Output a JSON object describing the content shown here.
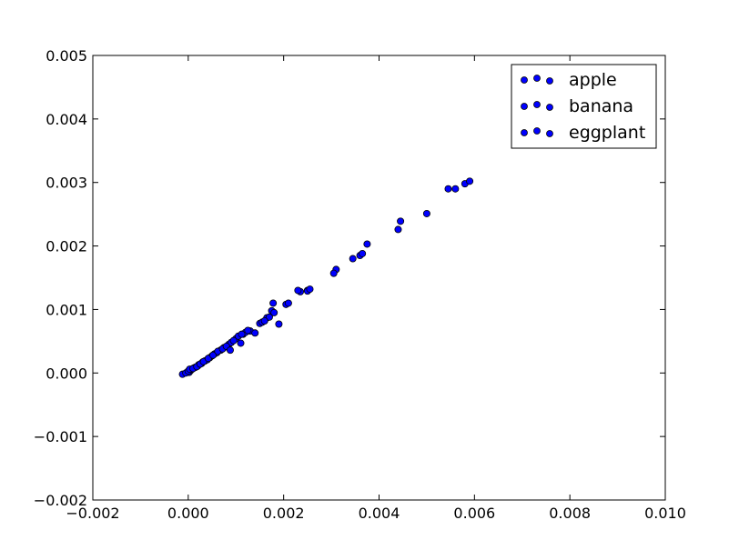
{
  "chart_data": {
    "type": "scatter",
    "title": "",
    "xlabel": "",
    "ylabel": "",
    "xlim": [
      -0.002,
      0.01
    ],
    "ylim": [
      -0.002,
      0.005
    ],
    "xticks": [
      "−0.002",
      "0.000",
      "0.002",
      "0.004",
      "0.006",
      "0.008",
      "0.010"
    ],
    "yticks": [
      "−0.002",
      "−0.001",
      "0.000",
      "0.001",
      "0.002",
      "0.003",
      "0.004",
      "0.005"
    ],
    "xtick_values": [
      -0.002,
      0.0,
      0.002,
      0.004,
      0.006,
      0.008,
      0.01
    ],
    "ytick_values": [
      -0.002,
      -0.001,
      0.0,
      0.001,
      0.002,
      0.003,
      0.004,
      0.005
    ],
    "grid": false,
    "legend_position": "top-right",
    "marker_color": "#0000ff",
    "series": [
      {
        "name": "apple",
        "color": "#0000ff",
        "points": [
          [
            -0.00012,
            -2e-05
          ],
          [
            2e-05,
            1e-05
          ],
          [
            5e-05,
            4e-05
          ],
          [
            0.00012,
            8e-05
          ],
          [
            0.0002,
            0.00011
          ],
          [
            0.00028,
            0.00015
          ],
          [
            0.00035,
            0.00019
          ],
          [
            0.00045,
            0.00024
          ],
          [
            0.00055,
            0.0003
          ],
          [
            0.00068,
            0.00036
          ],
          [
            0.00085,
            0.00045
          ],
          [
            0.001,
            0.00054
          ],
          [
            0.00115,
            0.00061
          ],
          [
            0.0013,
            0.00066
          ],
          [
            0.0015,
            0.00078
          ],
          [
            0.00165,
            0.00087
          ],
          [
            0.00175,
            0.00098
          ],
          [
            0.00205,
            0.00108
          ],
          [
            0.00235,
            0.00128
          ],
          [
            0.0025,
            0.0013
          ],
          [
            0.0031,
            0.00163
          ],
          [
            0.00345,
            0.0018
          ],
          [
            0.0036,
            0.00185
          ],
          [
            0.0044,
            0.00226
          ],
          [
            0.005,
            0.00251
          ],
          [
            0.00545,
            0.0029
          ],
          [
            0.0058,
            0.00298
          ]
        ]
      },
      {
        "name": "banana",
        "color": "#0000ff",
        "points": [
          [
            -5e-05,
            0.0
          ],
          [
            0.0,
            3e-05
          ],
          [
            8e-05,
            6e-05
          ],
          [
            0.00015,
            9e-05
          ],
          [
            0.00022,
            0.00013
          ],
          [
            0.0003,
            0.00017
          ],
          [
            0.0004,
            0.00021
          ],
          [
            0.0005,
            0.00027
          ],
          [
            0.0006,
            0.00032
          ],
          [
            0.00075,
            0.0004
          ],
          [
            0.0009,
            0.00048
          ],
          [
            0.00105,
            0.00058
          ],
          [
            0.0012,
            0.00064
          ],
          [
            0.0014,
            0.00063
          ],
          [
            0.00155,
            0.0008
          ],
          [
            0.0017,
            0.00088
          ],
          [
            0.00178,
            0.0011
          ],
          [
            0.0021,
            0.0011
          ],
          [
            0.0025,
            0.00129
          ],
          [
            0.00255,
            0.00132
          ],
          [
            0.00305,
            0.00157
          ],
          [
            0.00365,
            0.00188
          ],
          [
            0.00445,
            0.00239
          ],
          [
            0.0056,
            0.0029
          ],
          [
            0.0059,
            0.00302
          ]
        ]
      },
      {
        "name": "eggplant",
        "color": "#0000ff",
        "points": [
          [
            3e-05,
            6e-05
          ],
          [
            0.0001,
            7e-05
          ],
          [
            0.00018,
            0.0001
          ],
          [
            0.00025,
            0.00014
          ],
          [
            0.00032,
            0.00018
          ],
          [
            0.00042,
            0.00023
          ],
          [
            0.00052,
            0.00028
          ],
          [
            0.00062,
            0.00034
          ],
          [
            0.00072,
            0.00038
          ],
          [
            0.0008,
            0.00042
          ],
          [
            0.00088,
            0.00036
          ],
          [
            0.00095,
            0.00051
          ],
          [
            0.0011,
            0.00047
          ],
          [
            0.00112,
            0.00061
          ],
          [
            0.00125,
            0.00067
          ],
          [
            0.0016,
            0.00082
          ],
          [
            0.0018,
            0.00095
          ],
          [
            0.0019,
            0.00077
          ],
          [
            0.0023,
            0.0013
          ],
          [
            0.00375,
            0.00203
          ]
        ]
      }
    ]
  }
}
